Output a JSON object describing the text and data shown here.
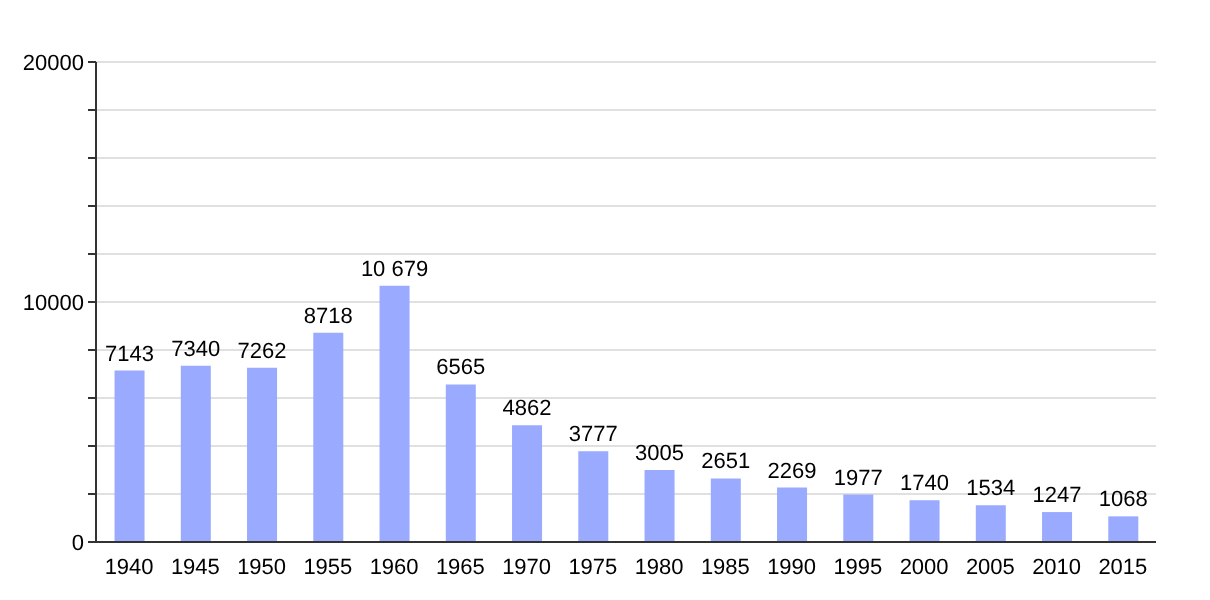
{
  "chart_data": {
    "type": "bar",
    "categories": [
      "1940",
      "1945",
      "1950",
      "1955",
      "1960",
      "1965",
      "1970",
      "1975",
      "1980",
      "1985",
      "1990",
      "1995",
      "2000",
      "2005",
      "2010",
      "2015"
    ],
    "values": [
      7143,
      7340,
      7262,
      8718,
      10679,
      6565,
      4862,
      3777,
      3005,
      2651,
      2269,
      1977,
      1740,
      1534,
      1247,
      1068
    ],
    "value_labels": [
      "7143",
      "7340",
      "7262",
      "8718",
      "10 679",
      "6565",
      "4862",
      "3777",
      "3005",
      "2651",
      "2269",
      "1977",
      "1740",
      "1534",
      "1247",
      "1068"
    ],
    "color": "#99aaff",
    "ylim": [
      0,
      20000
    ],
    "yticks": [
      0,
      {
        "value": 2000,
        "label": null
      },
      {
        "value": 4000,
        "label": null
      },
      {
        "value": 6000,
        "label": null
      },
      {
        "value": 8000,
        "label": null
      },
      10000,
      {
        "value": 12000,
        "label": null
      },
      {
        "value": 14000,
        "label": null
      },
      {
        "value": 16000,
        "label": null
      },
      {
        "value": 18000,
        "label": null
      },
      20000
    ],
    "grid": "y"
  }
}
